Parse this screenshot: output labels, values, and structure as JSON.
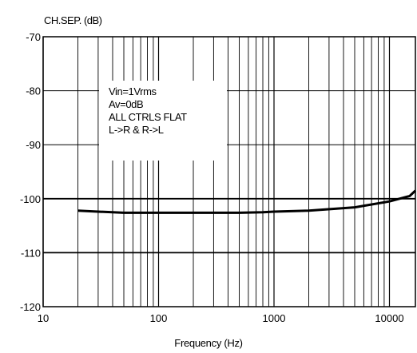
{
  "chart_data": {
    "type": "line",
    "ylabel": "CH.SEP. (dB)",
    "xlabel": "Frequency (Hz)",
    "xscale": "log",
    "xlim": [
      10,
      20000
    ],
    "ylim": [
      -120,
      -70
    ],
    "xticks": [
      "10",
      "100",
      "1000",
      "10000"
    ],
    "yticks": [
      "-70",
      "-80",
      "-90",
      "-100",
      "-110",
      "-120"
    ],
    "grid": true,
    "annotation": [
      "Vin=1Vrms",
      "Av=0dB",
      "ALL CTRLS FLAT",
      "L->R & R->L"
    ],
    "series": [
      {
        "x": [
          20,
          30,
          50,
          100,
          200,
          500,
          800,
          1000,
          2000,
          5000,
          10000,
          15000,
          20000
        ],
        "y": [
          -102.2,
          -102.4,
          -102.6,
          -102.6,
          -102.6,
          -102.6,
          -102.5,
          -102.4,
          -102.2,
          -101.6,
          -100.5,
          -99.5,
          -98.5
        ]
      }
    ]
  }
}
